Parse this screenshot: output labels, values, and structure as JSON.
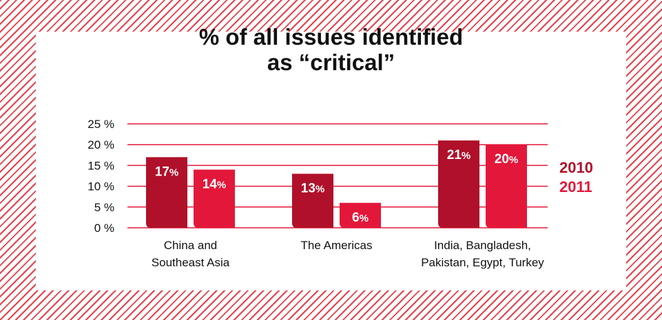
{
  "chart_data": {
    "type": "bar",
    "title": "% of all issues identified as “critical”",
    "title_lines": [
      "% of all issues identified",
      "as “critical”"
    ],
    "categories": [
      [
        "China and",
        "Southeast Asia"
      ],
      [
        "The Americas"
      ],
      [
        "India, Bangladesh,",
        "Pakistan, Egypt, Turkey"
      ]
    ],
    "series": [
      {
        "name": "2010",
        "values": [
          17,
          13,
          21
        ],
        "color": "#b01029"
      },
      {
        "name": "2011",
        "values": [
          14,
          6,
          20
        ],
        "color": "#e3173a"
      }
    ],
    "ylim": [
      0,
      25
    ],
    "yticks": [
      0,
      5,
      10,
      15,
      20,
      25
    ],
    "ytick_labels": [
      "0 %",
      "5 %",
      "10 %",
      "15 %",
      "20 %",
      "25 %"
    ],
    "value_suffix": "%",
    "grid": true,
    "grid_color": "#e3173a",
    "legend_position": "right"
  }
}
